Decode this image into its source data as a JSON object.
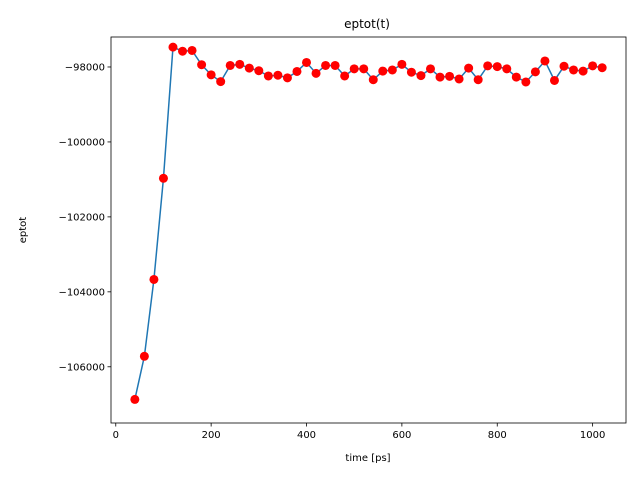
{
  "chart_data": {
    "type": "line",
    "title": "eptot(t)",
    "xlabel": "time [ps]",
    "ylabel": "eptot",
    "xlim": [
      -10,
      1070
    ],
    "ylim": [
      -107500,
      -97200
    ],
    "xticks": [
      0,
      200,
      400,
      600,
      800,
      1000
    ],
    "yticks": [
      -106000,
      -104000,
      -102000,
      -100000,
      -98000
    ],
    "xtick_labels": [
      "0",
      "200",
      "400",
      "600",
      "800",
      "1000"
    ],
    "ytick_labels": [
      "−106000",
      "−104000",
      "−102000",
      "−100000",
      "−98000"
    ],
    "grid": false,
    "line_color": "#1f77b4",
    "marker_color": "#ff0000",
    "x": [
      40,
      60,
      80,
      100,
      120,
      140,
      160,
      180,
      200,
      220,
      240,
      260,
      280,
      300,
      320,
      340,
      360,
      380,
      400,
      420,
      440,
      460,
      480,
      500,
      520,
      540,
      560,
      580,
      600,
      620,
      640,
      660,
      680,
      700,
      720,
      740,
      760,
      780,
      800,
      820,
      840,
      860,
      880,
      900,
      920,
      940,
      960,
      980,
      1000,
      1020
    ],
    "y": [
      -106870,
      -105720,
      -103670,
      -100970,
      -97470,
      -97580,
      -97560,
      -97940,
      -98210,
      -98390,
      -97960,
      -97930,
      -98030,
      -98100,
      -98240,
      -98220,
      -98290,
      -98120,
      -97880,
      -98170,
      -97960,
      -97960,
      -98240,
      -98050,
      -98050,
      -98340,
      -98110,
      -98080,
      -97930,
      -98140,
      -98230,
      -98050,
      -98270,
      -98250,
      -98320,
      -98030,
      -98340,
      -97970,
      -97990,
      -98050,
      -98270,
      -98400,
      -98130,
      -97840,
      -98360,
      -97980,
      -98080,
      -98110,
      -97970,
      -98020
    ]
  }
}
